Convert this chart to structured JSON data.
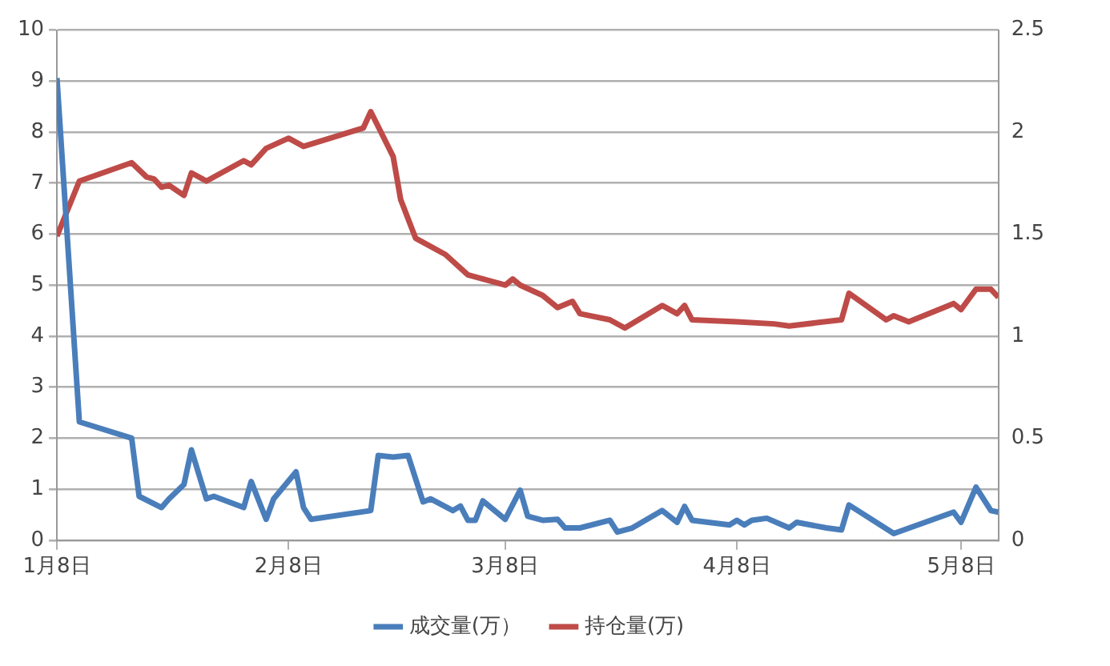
{
  "chart_data": {
    "type": "line",
    "xlim": [
      "--01-08",
      "--05-13"
    ],
    "xticks": [
      {
        "value": "--01-08",
        "label": "1月8日"
      },
      {
        "value": "--02-08",
        "label": "2月8日"
      },
      {
        "value": "--03-08",
        "label": "3月8日"
      },
      {
        "value": "--04-08",
        "label": "4月8日"
      },
      {
        "value": "--05-08",
        "label": "5月8日"
      }
    ],
    "ylim": [
      0,
      10
    ],
    "yticks": [
      0,
      1,
      2,
      3,
      4,
      5,
      6,
      7,
      8,
      9,
      10
    ],
    "y2lim": [
      0,
      2.5
    ],
    "y2ticks": [
      0,
      0.5,
      1,
      1.5,
      2,
      2.5
    ],
    "grid": "y",
    "legend": "bottom",
    "marker": "none",
    "line_style": "solid",
    "series": [
      {
        "name": "成交量(万）",
        "color": "#4a7ebb",
        "x": [
          "--01-08",
          "--01-11",
          "--01-18",
          "--01-19",
          "--01-22",
          "--01-23",
          "--01-25",
          "--01-26",
          "--01-28",
          "--01-29",
          "--02-02",
          "--02-03",
          "--02-05",
          "--02-06",
          "--02-09",
          "--02-10",
          "--02-11",
          "--02-19",
          "--02-20",
          "--02-22",
          "--02-24",
          "--02-26",
          "--02-27",
          "--03-01",
          "--03-02",
          "--03-03",
          "--03-04",
          "--03-05",
          "--03-08",
          "--03-10",
          "--03-11",
          "--03-13",
          "--03-15",
          "--03-16",
          "--03-18",
          "--03-22",
          "--03-23",
          "--03-25",
          "--03-29",
          "--03-31",
          "--04-01",
          "--04-02",
          "--04-07",
          "--04-08",
          "--04-09",
          "--04-10",
          "--04-12",
          "--04-15",
          "--04-16",
          "--04-20",
          "--04-22",
          "--04-23",
          "--04-29",
          "--05-07",
          "--05-08",
          "--05-10",
          "--05-12",
          "--05-13"
        ],
        "values": [
          9.06,
          2.32,
          2.0,
          0.86,
          0.64,
          0.81,
          1.09,
          1.77,
          0.81,
          0.86,
          0.64,
          1.15,
          0.41,
          0.81,
          1.34,
          0.64,
          0.41,
          0.58,
          1.66,
          1.63,
          1.66,
          0.75,
          0.81,
          0.58,
          0.67,
          0.39,
          0.39,
          0.77,
          0.41,
          0.98,
          0.47,
          0.39,
          0.41,
          0.24,
          0.24,
          0.39,
          0.16,
          0.24,
          0.58,
          0.35,
          0.66,
          0.39,
          0.3,
          0.39,
          0.3,
          0.39,
          0.43,
          0.24,
          0.35,
          0.24,
          0.2,
          0.69,
          0.13,
          0.55,
          0.35,
          1.04,
          0.58,
          0.55
        ]
      },
      {
        "name": "持仓量(万)",
        "color": "#be4b48",
        "axis": "y2",
        "x": [
          "--01-08",
          "--01-11",
          "--01-18",
          "--01-20",
          "--01-21",
          "--01-22",
          "--01-23",
          "--01-25",
          "--01-26",
          "--01-28",
          "--02-02",
          "--02-03",
          "--02-05",
          "--02-08",
          "--02-10",
          "--02-18",
          "--02-19",
          "--02-22",
          "--02-23",
          "--02-25",
          "--02-29",
          "--03-03",
          "--03-08",
          "--03-09",
          "--03-10",
          "--03-13",
          "--03-15",
          "--03-17",
          "--03-18",
          "--03-22",
          "--03-24",
          "--03-29",
          "--03-31",
          "--04-01",
          "--04-02",
          "--04-08",
          "--04-13",
          "--04-15",
          "--04-22",
          "--04-23",
          "--04-28",
          "--04-29",
          "--05-01",
          "--05-07",
          "--05-08",
          "--05-10",
          "--05-12",
          "--05-13"
        ],
        "values": [
          1.49,
          1.76,
          1.85,
          1.78,
          1.77,
          1.73,
          1.74,
          1.69,
          1.8,
          1.76,
          1.86,
          1.84,
          1.92,
          1.97,
          1.93,
          2.02,
          2.1,
          1.88,
          1.67,
          1.48,
          1.4,
          1.3,
          1.25,
          1.28,
          1.25,
          1.2,
          1.14,
          1.17,
          1.11,
          1.08,
          1.04,
          1.15,
          1.11,
          1.15,
          1.08,
          1.07,
          1.06,
          1.05,
          1.08,
          1.21,
          1.08,
          1.1,
          1.07,
          1.16,
          1.13,
          1.23,
          1.23,
          1.19
        ]
      }
    ]
  }
}
